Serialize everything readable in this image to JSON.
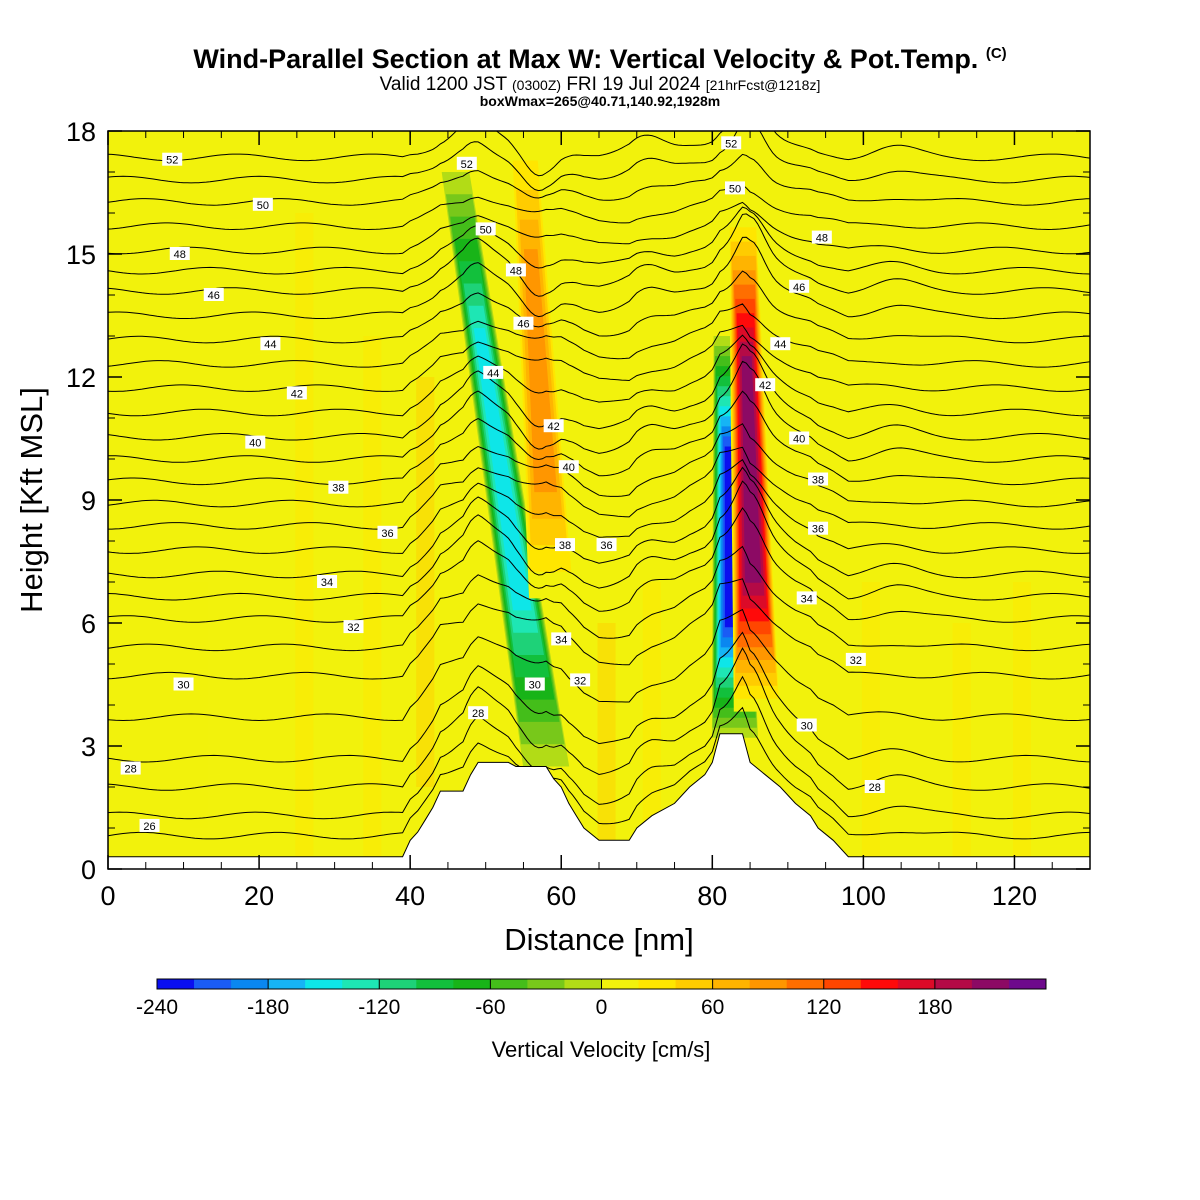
{
  "header": {
    "title_main": "Wind-Parallel Section at Max W: Vertical Velocity & Pot.Temp.",
    "title_mark": "(C)",
    "valid_prefix": "Valid 1200 JST",
    "valid_utc": "(0300Z)",
    "valid_date": "FRI 19 Jul 2024",
    "forecast_info": "[21hrFcst@1218z]",
    "box_info": "boxWmax=265@40.71,140.92,1928m"
  },
  "chart_data": {
    "type": "heatmap",
    "xlabel": "Distance [nm]",
    "ylabel": "Height [Kft MSL]",
    "xlim": [
      0,
      130
    ],
    "ylim": [
      0,
      18
    ],
    "x_ticks": [
      0,
      20,
      40,
      60,
      80,
      100,
      120
    ],
    "y_ticks": [
      0,
      3,
      6,
      9,
      12,
      15,
      18
    ],
    "colorbar": {
      "title": "Vertical Velocity [cm/s]",
      "min": -240,
      "max": 220,
      "step": 20,
      "tick_values": [
        -240,
        -180,
        -120,
        -60,
        0,
        60,
        120,
        180
      ],
      "colors": [
        "#0a0ff0",
        "#1a5cf5",
        "#0a87f0",
        "#16b4f5",
        "#0ee6e8",
        "#1ee6b4",
        "#1ed278",
        "#12c03c",
        "#18b418",
        "#44be1a",
        "#78c81a",
        "#b2dc16",
        "#f2f20c",
        "#ffe600",
        "#ffcc00",
        "#ffb400",
        "#ff9600",
        "#ff6e00",
        "#ff4600",
        "#ff0a0a",
        "#dc0a28",
        "#b40a46",
        "#8c0a64",
        "#6e0a8c"
      ]
    },
    "updrafts": [
      {
        "x_top": 55,
        "x_bottom": 59,
        "y_bottom": 6,
        "y_top": 18,
        "peak_cm_s": 100
      },
      {
        "x_top": 84,
        "x_bottom": 86,
        "y_bottom": 3.2,
        "y_top": 16,
        "peak_cm_s": 220
      }
    ],
    "downdrafts": [
      {
        "x_top": 46,
        "x_bottom": 58,
        "y_bottom": 2.5,
        "y_top": 17,
        "peak_cm_s": -160
      },
      {
        "x_top": 82,
        "x_bottom": 83,
        "y_bottom": 3.2,
        "y_top": 13,
        "peak_cm_s": -240
      }
    ],
    "terrain": [
      [
        0,
        0.3
      ],
      [
        39,
        0.3
      ],
      [
        40,
        0.7
      ],
      [
        41,
        0.9
      ],
      [
        42,
        1.2
      ],
      [
        43,
        1.5
      ],
      [
        44,
        1.9
      ],
      [
        47,
        1.9
      ],
      [
        48,
        2.3
      ],
      [
        49,
        2.6
      ],
      [
        53,
        2.6
      ],
      [
        54,
        2.5
      ],
      [
        58,
        2.5
      ],
      [
        59,
        2.2
      ],
      [
        60,
        2.0
      ],
      [
        61,
        1.6
      ],
      [
        62,
        1.3
      ],
      [
        63,
        1.0
      ],
      [
        65,
        0.7
      ],
      [
        69,
        0.7
      ],
      [
        70,
        1.0
      ],
      [
        72,
        1.3
      ],
      [
        75,
        1.6
      ],
      [
        77,
        2.0
      ],
      [
        79,
        2.3
      ],
      [
        80,
        2.6
      ],
      [
        81,
        3.3
      ],
      [
        84,
        3.3
      ],
      [
        85,
        2.6
      ],
      [
        87,
        2.3
      ],
      [
        89,
        2.0
      ],
      [
        91,
        1.6
      ],
      [
        93,
        1.3
      ],
      [
        94,
        1.0
      ],
      [
        96,
        0.7
      ],
      [
        98,
        0.3
      ],
      [
        130,
        0.3
      ]
    ],
    "theta_contours": [
      {
        "label": "26",
        "label_x": 5.5,
        "label_y": 1.05
      },
      {
        "label": "28",
        "label_x": 3.0,
        "label_y": 2.45
      },
      {
        "label": "30",
        "label_x": 10.0,
        "label_y": 4.5
      },
      {
        "label": "32",
        "label_x": 32.5,
        "label_y": 5.9
      },
      {
        "label": "34",
        "label_x": 29.0,
        "label_y": 7.0
      },
      {
        "label": "36",
        "label_x": 37.0,
        "label_y": 8.2
      },
      {
        "label": "38",
        "label_x": 30.5,
        "label_y": 9.3
      },
      {
        "label": "40",
        "label_x": 19.5,
        "label_y": 10.4
      },
      {
        "label": "42",
        "label_x": 25.0,
        "label_y": 11.6
      },
      {
        "label": "44",
        "label_x": 21.5,
        "label_y": 12.8
      },
      {
        "label": "46",
        "label_x": 14.0,
        "label_y": 14.0
      },
      {
        "label": "48",
        "label_x": 9.5,
        "label_y": 15.0
      },
      {
        "label": "50",
        "label_x": 20.5,
        "label_y": 16.2
      },
      {
        "label": "52",
        "label_x": 8.5,
        "label_y": 17.3
      }
    ],
    "extra_contour_labels": [
      {
        "label": "52",
        "x": 47.5,
        "y": 17.2
      },
      {
        "label": "52",
        "x": 82.5,
        "y": 17.7
      },
      {
        "label": "50",
        "x": 50.0,
        "y": 15.6
      },
      {
        "label": "50",
        "x": 83.0,
        "y": 16.6
      },
      {
        "label": "48",
        "x": 54.0,
        "y": 14.6
      },
      {
        "label": "48",
        "x": 94.5,
        "y": 15.4
      },
      {
        "label": "46",
        "x": 55.0,
        "y": 13.3
      },
      {
        "label": "46",
        "x": 91.5,
        "y": 14.2
      },
      {
        "label": "44",
        "x": 51.0,
        "y": 12.1
      },
      {
        "label": "44",
        "x": 89.0,
        "y": 12.8
      },
      {
        "label": "42",
        "x": 59.0,
        "y": 10.8
      },
      {
        "label": "42",
        "x": 87.0,
        "y": 11.8
      },
      {
        "label": "40",
        "x": 61.0,
        "y": 9.8
      },
      {
        "label": "40",
        "x": 91.5,
        "y": 10.5
      },
      {
        "label": "38",
        "x": 60.5,
        "y": 7.9
      },
      {
        "label": "38",
        "x": 94.0,
        "y": 9.5
      },
      {
        "label": "36",
        "x": 66.0,
        "y": 7.9
      },
      {
        "label": "36",
        "x": 94.0,
        "y": 8.3
      },
      {
        "label": "34",
        "x": 60.0,
        "y": 5.6
      },
      {
        "label": "34",
        "x": 92.5,
        "y": 6.6
      },
      {
        "label": "32",
        "x": 62.5,
        "y": 4.6
      },
      {
        "label": "32",
        "x": 99.0,
        "y": 5.1
      },
      {
        "label": "30",
        "x": 56.5,
        "y": 4.5
      },
      {
        "label": "30",
        "x": 92.5,
        "y": 3.5
      },
      {
        "label": "28",
        "x": 49.0,
        "y": 3.8
      },
      {
        "label": "28",
        "x": 101.5,
        "y": 2.0
      }
    ]
  }
}
